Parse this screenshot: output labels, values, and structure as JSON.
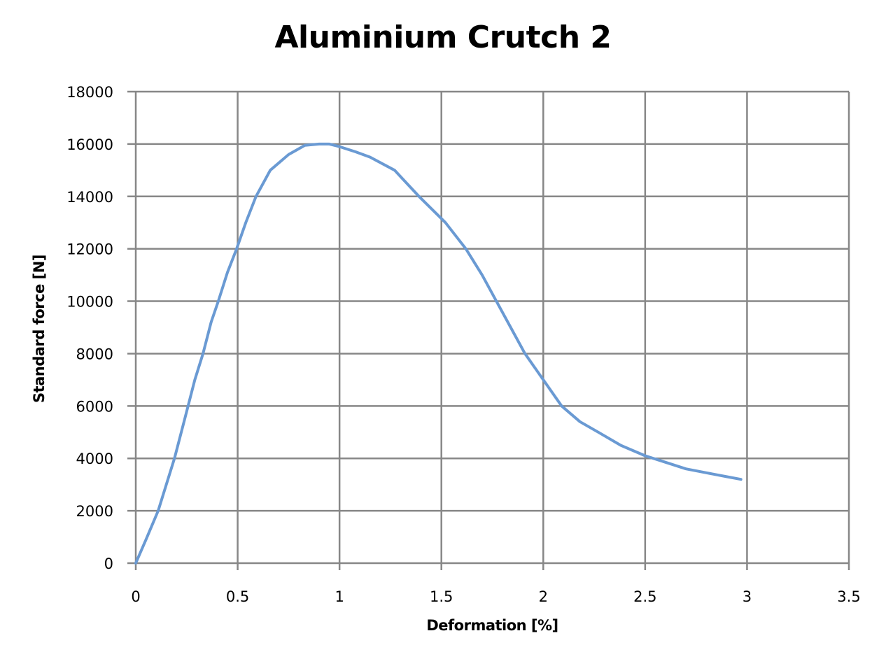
{
  "chart_data": {
    "type": "line",
    "title": "Aluminium Crutch 2",
    "xlabel": "Deformation [%]",
    "ylabel": "Standard force [N]",
    "xlim": [
      0,
      3.5
    ],
    "ylim": [
      0,
      18000
    ],
    "x_ticks": [
      "0",
      "0.5",
      "1",
      "1.5",
      "2",
      "2.5",
      "3",
      "3.5"
    ],
    "y_ticks": [
      "0",
      "2000",
      "4000",
      "6000",
      "8000",
      "10000",
      "12000",
      "14000",
      "16000",
      "18000"
    ],
    "grid": true,
    "legend": null,
    "series": [
      {
        "name": "Aluminium Crutch 2",
        "color": "#6A9AD3",
        "x": [
          0,
          0.05,
          0.11,
          0.19,
          0.24,
          0.29,
          0.33,
          0.37,
          0.405,
          0.45,
          0.495,
          0.54,
          0.59,
          0.66,
          0.75,
          0.83,
          0.9,
          0.95,
          1.0,
          1.08,
          1.15,
          1.27,
          1.39,
          1.52,
          1.62,
          1.7,
          1.77,
          1.84,
          1.91,
          2.0,
          2.09,
          2.18,
          2.27,
          2.38,
          2.5,
          2.6,
          2.7,
          2.8,
          2.9,
          2.97
        ],
        "y": [
          0,
          900,
          2000,
          4000,
          5500,
          7000,
          8000,
          9200,
          10000,
          11100,
          12000,
          13000,
          14000,
          15000,
          15600,
          15950,
          16000,
          16000,
          15900,
          15700,
          15500,
          15000,
          14000,
          13000,
          12000,
          11000,
          10000,
          9000,
          8000,
          7000,
          6000,
          5400,
          5000,
          4500,
          4100,
          3850,
          3600,
          3450,
          3300,
          3200
        ]
      }
    ]
  },
  "colors": {
    "line": "#6A9AD3",
    "grid": "#878787",
    "background": "#FFFFFF"
  }
}
